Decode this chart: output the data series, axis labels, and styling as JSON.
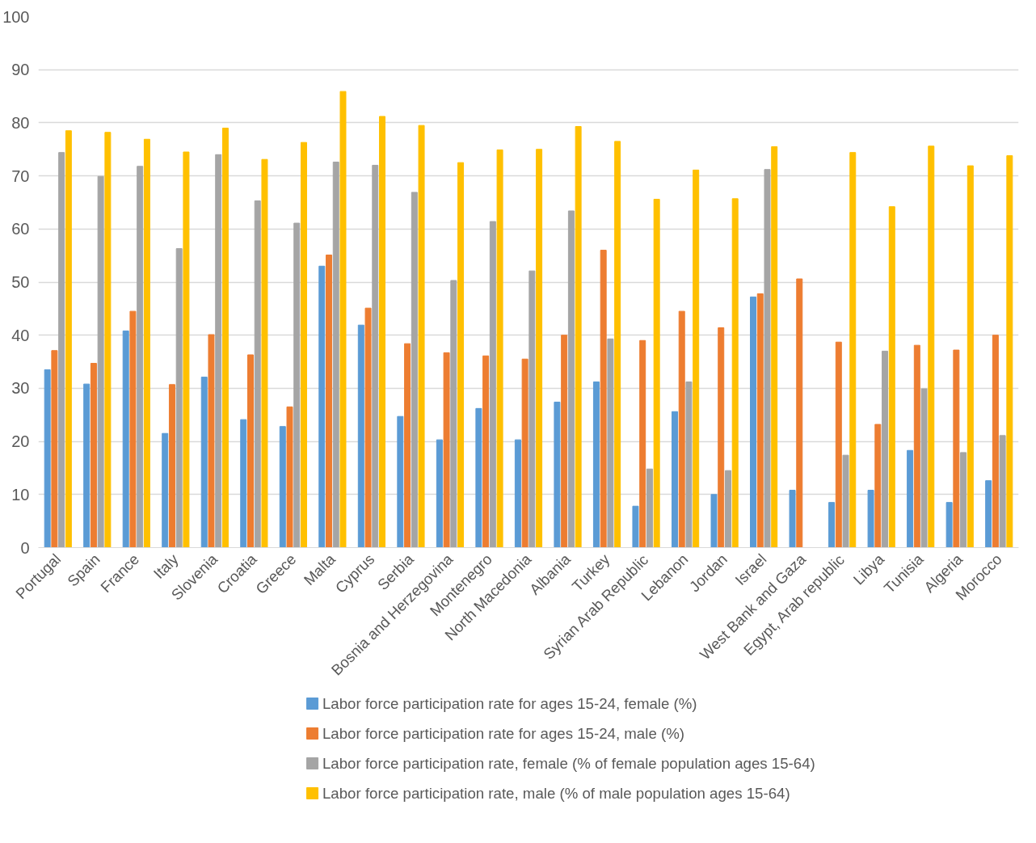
{
  "chart_data": {
    "type": "bar",
    "categories": [
      "Portugal",
      "Spain",
      "France",
      "Italy",
      "Slovenia",
      "Croatia",
      "Greece",
      "Malta",
      "Cyprus",
      "Serbia",
      "Bosnia and Herzegovina",
      "Montenegro",
      "North Macedonia",
      "Albania",
      "Turkey",
      "Syrian Arab Republic",
      "Lebanon",
      "Jordan",
      "Israel",
      "West Bank and Gaza",
      "Egypt, Arab republic",
      "Libya",
      "Tunisia",
      "Algeria",
      "Morocco"
    ],
    "series": [
      {
        "name": "Labor force participation rate for ages 15-24, female (%)",
        "color": "#5b9bd5",
        "values": [
          33.5,
          30.8,
          40.8,
          21.5,
          32.1,
          24.1,
          22.8,
          53.0,
          41.9,
          24.7,
          20.3,
          26.2,
          20.3,
          27.4,
          31.2,
          7.8,
          25.6,
          10.0,
          47.2,
          10.8,
          8.5,
          10.8,
          18.3,
          8.5,
          12.6
        ]
      },
      {
        "name": "Labor force participation rate for ages 15-24, male (%)",
        "color": "#ed7d31",
        "values": [
          37.1,
          34.7,
          44.5,
          30.7,
          40.1,
          36.3,
          26.5,
          55.1,
          45.1,
          38.4,
          36.7,
          36.1,
          35.5,
          40.0,
          56.0,
          39.0,
          44.5,
          41.4,
          47.8,
          50.6,
          38.7,
          23.2,
          38.1,
          37.2,
          40.0
        ]
      },
      {
        "name": "Labor force participation rate, female (% of female population ages 15-64)",
        "color": "#a5a5a5",
        "values": [
          74.4,
          69.9,
          71.8,
          56.3,
          74.0,
          65.3,
          61.1,
          72.6,
          72.0,
          66.9,
          50.3,
          61.4,
          52.1,
          63.4,
          39.3,
          14.8,
          31.2,
          14.5,
          71.2,
          null,
          17.4,
          37.0,
          29.9,
          17.9,
          21.1
        ]
      },
      {
        "name": "Labor force participation rate, male (% of male population ages 15-64)",
        "color": "#ffc000",
        "values": [
          78.5,
          78.2,
          76.9,
          74.5,
          79.0,
          73.1,
          76.3,
          85.9,
          81.2,
          79.5,
          72.5,
          74.9,
          75.0,
          79.3,
          76.5,
          65.6,
          71.1,
          65.7,
          75.5,
          null,
          74.4,
          64.2,
          75.6,
          71.9,
          73.8
        ]
      }
    ],
    "ylim": [
      0,
      100
    ],
    "yticks": [
      0,
      10,
      20,
      30,
      40,
      50,
      60,
      70,
      80,
      90,
      100
    ],
    "grid": "y",
    "legend": "bottom"
  }
}
